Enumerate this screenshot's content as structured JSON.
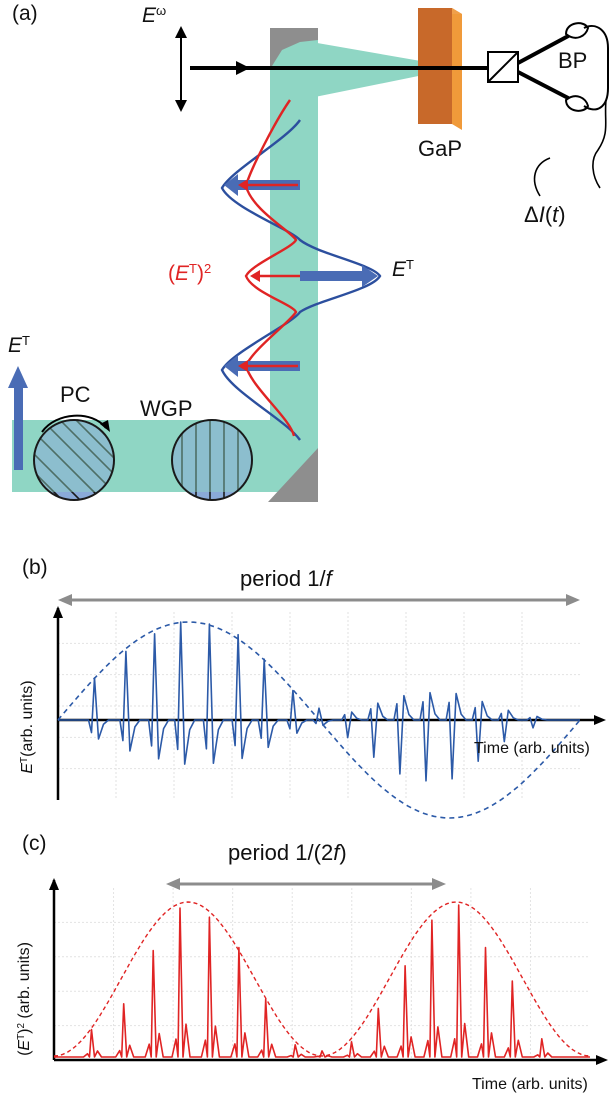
{
  "panel_a": {
    "tag": "(a)",
    "e_omega_base": "E",
    "e_omega_sup": "ω",
    "gap_label": "GaP",
    "bp_label": "BP",
    "delta_i": {
      "prefix": "Δ",
      "var": "I",
      "paren_open": "(",
      "t": "t",
      "paren_close": ")"
    },
    "et_right": {
      "base": "E",
      "sup": "T"
    },
    "et_squared": {
      "open": "(",
      "base": "E",
      "sup": "T",
      "close": ")",
      "power": "2"
    },
    "et_left": {
      "base": "E",
      "sup": "T"
    },
    "pc_label": "PC",
    "wgp_label": "WGP",
    "colors": {
      "beam": "#8fd6c4",
      "gap_front": "#c8692a",
      "gap_side": "#f09a3a",
      "mirror": "#8e8e8e",
      "blue": "#2c4f9e",
      "red": "#e02424",
      "arrow_blue": "#4a6cb5",
      "disc": "#8aaad8"
    }
  },
  "panel_b": {
    "tag": "(b)",
    "period_prefix": "period 1/",
    "period_var": "f",
    "xlabel": "Time (arb. units)",
    "ylabel_base": "E",
    "ylabel_sup": "T",
    "ylabel_rest": "(arb. units)"
  },
  "panel_c": {
    "tag": "(c)",
    "period_prefix": "period 1/(2",
    "period_var": "f",
    "period_suffix": ")",
    "xlabel": "Time (arb. units)",
    "ylabel_open": "(",
    "ylabel_base": "E",
    "ylabel_sup": "T",
    "ylabel_close": ")",
    "ylabel_power": "2",
    "ylabel_rest": " (arb. units)"
  },
  "chart_data": [
    {
      "type": "line",
      "panel": "b",
      "xlabel": "Time (arb. units)",
      "ylabel": "E^T (arb. units)",
      "envelope": "cosine, one full period across the plot (dashed)",
      "pulse_x": [
        0.07,
        0.13,
        0.185,
        0.235,
        0.29,
        0.345,
        0.395,
        0.45,
        0.5,
        0.555,
        0.605,
        0.655,
        0.705,
        0.755,
        0.805,
        0.855,
        0.91
      ],
      "pulse_amplitude": [
        0.43,
        0.7,
        0.88,
        1.0,
        0.98,
        0.87,
        0.62,
        0.3,
        0.12,
        0.18,
        0.38,
        0.55,
        0.62,
        0.6,
        0.42,
        0.22,
        0.08
      ],
      "series": [
        {
          "values_color": "#2c5aa8"
        }
      ],
      "grid": true
    },
    {
      "type": "line",
      "panel": "c",
      "xlabel": "Time (arb. units)",
      "ylabel": "(E^T)^2 (arb. units)",
      "envelope": "squared cosine, two lobes across the plot (dashed)",
      "pulse_x": [
        0.07,
        0.13,
        0.185,
        0.235,
        0.29,
        0.345,
        0.395,
        0.45,
        0.5,
        0.555,
        0.605,
        0.655,
        0.705,
        0.755,
        0.805,
        0.855,
        0.91
      ],
      "pulse_height": [
        0.18,
        0.35,
        0.7,
        0.98,
        0.92,
        0.72,
        0.38,
        0.08,
        0.04,
        0.1,
        0.32,
        0.6,
        0.9,
        1.0,
        0.72,
        0.5,
        0.12
      ],
      "series": [
        {
          "values_color": "#e02424"
        }
      ],
      "grid": true
    }
  ]
}
